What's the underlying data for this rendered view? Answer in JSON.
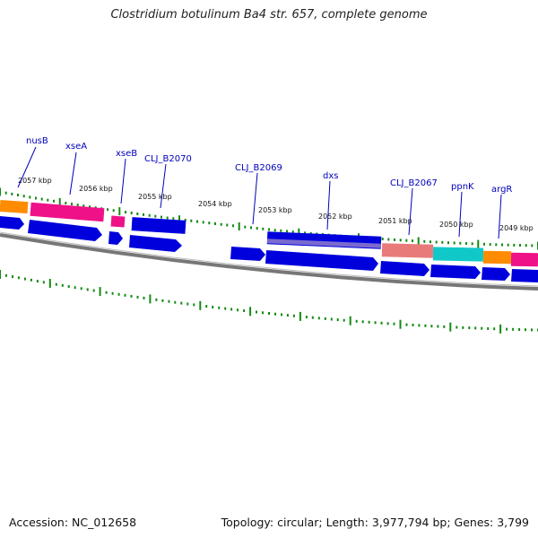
{
  "title": "Clostridium botulinum Ba4 str. 657, complete genome",
  "footer": {
    "accession": "Accession: NC_012658",
    "stats": "Topology: circular; Length: 3,977,794 bp; Genes: 3,799"
  },
  "colors": {
    "cds": "#0000dd",
    "orange": "#ff8c00",
    "magenta": "#ee1188",
    "salmon": "#e97a7a",
    "cyan": "#11c8c8",
    "purple": "#7a6ad0",
    "backbone": "#777777",
    "tick": "#138a13",
    "label": "#0000bb"
  },
  "kbp_labels": [
    "2057 kbp",
    "2056 kbp",
    "2055 kbp",
    "2054 kbp",
    "2053 kbp",
    "2052 kbp",
    "2051 kbp",
    "2050 kbp",
    "2049 kbp"
  ],
  "gene_labels": [
    "nusB",
    "xseA",
    "xseB",
    "CLJ_B2070",
    "CLJ_B2069",
    "dxs",
    "CLJ_B2067",
    "ppnK",
    "argR"
  ]
}
